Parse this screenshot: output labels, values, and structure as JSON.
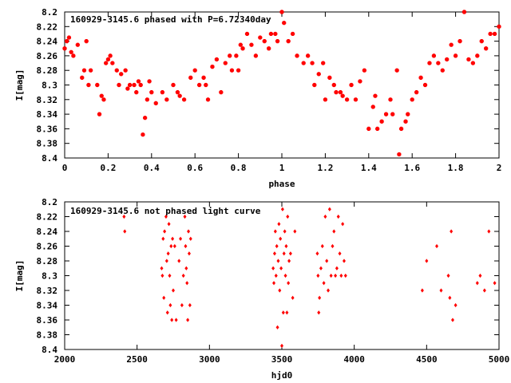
{
  "chart_data": [
    {
      "type": "scatter",
      "title": "160929-3145.6 phased with P=6.72340day",
      "xlabel": "phase",
      "ylabel": "I[mag]",
      "xlim": [
        0,
        2
      ],
      "ylim": [
        8.4,
        8.2
      ],
      "y_inverted": true,
      "grid": false,
      "marker_color": "#ff0000",
      "x_ticks": [
        "0",
        "0.2",
        "0.4",
        "0.6",
        "0.8",
        "1",
        "1.2",
        "1.4",
        "1.6",
        "1.8",
        "2"
      ],
      "y_ticks": [
        "8.2",
        "8.22",
        "8.24",
        "8.26",
        "8.28",
        "8.3",
        "8.32",
        "8.34",
        "8.36",
        "8.38",
        "8.4"
      ],
      "x": [
        0.0,
        0.01,
        0.02,
        0.03,
        0.04,
        0.06,
        0.08,
        0.09,
        0.1,
        0.11,
        0.12,
        0.15,
        0.16,
        0.17,
        0.18,
        0.19,
        0.2,
        0.21,
        0.22,
        0.24,
        0.25,
        0.26,
        0.28,
        0.29,
        0.3,
        0.32,
        0.33,
        0.34,
        0.35,
        0.36,
        0.37,
        0.38,
        0.39,
        0.4,
        0.42,
        0.45,
        0.47,
        0.5,
        0.52,
        0.53,
        0.55,
        0.58,
        0.6,
        0.62,
        0.64,
        0.65,
        0.66,
        0.68,
        0.7,
        0.72,
        0.74,
        0.76,
        0.77,
        0.79,
        0.8,
        0.81,
        0.82,
        0.84,
        0.86,
        0.88,
        0.9,
        0.92,
        0.94,
        0.95,
        0.97,
        0.98,
        1.0,
        1.01,
        1.03,
        1.05,
        1.07,
        1.1,
        1.12,
        1.14,
        1.15,
        1.17,
        1.19,
        1.2,
        1.22,
        1.24,
        1.25,
        1.27,
        1.28,
        1.3,
        1.32,
        1.34,
        1.36,
        1.38,
        1.4,
        1.42,
        1.43,
        1.44,
        1.46,
        1.48,
        1.5,
        1.51,
        1.53,
        1.54,
        1.55,
        1.57,
        1.58,
        1.6,
        1.62,
        1.64,
        1.66,
        1.68,
        1.7,
        1.72,
        1.74,
        1.76,
        1.78,
        1.8,
        1.82,
        1.84,
        1.86,
        1.88,
        1.9,
        1.92,
        1.94,
        1.96,
        1.98,
        2.0
      ],
      "y": [
        8.25,
        8.24,
        8.235,
        8.255,
        8.26,
        8.245,
        8.29,
        8.28,
        8.24,
        8.3,
        8.28,
        8.3,
        8.34,
        8.315,
        8.32,
        8.27,
        8.265,
        8.26,
        8.27,
        8.28,
        8.3,
        8.285,
        8.28,
        8.305,
        8.3,
        8.3,
        8.31,
        8.295,
        8.3,
        8.368,
        8.345,
        8.32,
        8.295,
        8.31,
        8.325,
        8.31,
        8.32,
        8.3,
        8.31,
        8.315,
        8.32,
        8.29,
        8.28,
        8.3,
        8.29,
        8.3,
        8.32,
        8.275,
        8.265,
        8.31,
        8.27,
        8.26,
        8.28,
        8.26,
        8.28,
        8.245,
        8.25,
        8.23,
        8.245,
        8.26,
        8.235,
        8.24,
        8.25,
        8.23,
        8.23,
        8.24,
        8.2,
        8.215,
        8.24,
        8.23,
        8.26,
        8.27,
        8.26,
        8.27,
        8.3,
        8.285,
        8.27,
        8.32,
        8.29,
        8.3,
        8.31,
        8.31,
        8.315,
        8.32,
        8.3,
        8.32,
        8.295,
        8.28,
        8.36,
        8.33,
        8.315,
        8.36,
        8.35,
        8.34,
        8.32,
        8.34,
        8.28,
        8.395,
        8.36,
        8.35,
        8.34,
        8.32,
        8.31,
        8.29,
        8.3,
        8.27,
        8.26,
        8.27,
        8.28,
        8.265,
        8.245,
        8.26,
        8.24,
        8.2,
        8.265,
        8.27,
        8.26,
        8.24,
        8.25,
        8.23,
        8.23,
        8.22
      ]
    },
    {
      "type": "scatter",
      "title": "160929-3145.6 not phased light curve",
      "xlabel": "hjd0",
      "ylabel": "I[mag]",
      "xlim": [
        2000,
        5000
      ],
      "ylim": [
        8.4,
        8.2
      ],
      "y_inverted": true,
      "grid": false,
      "marker_color": "#ff0000",
      "x_ticks": [
        "2000",
        "2500",
        "3000",
        "3500",
        "4000",
        "4500",
        "5000"
      ],
      "y_ticks": [
        "8.2",
        "8.22",
        "8.24",
        "8.26",
        "8.28",
        "8.3",
        "8.32",
        "8.34",
        "8.36",
        "8.38",
        "8.4"
      ],
      "x": [
        2410,
        2415,
        2670,
        2675,
        2680,
        2685,
        2690,
        2700,
        2705,
        2710,
        2715,
        2720,
        2725,
        2730,
        2735,
        2740,
        2745,
        2750,
        2760,
        2770,
        2790,
        2800,
        2810,
        2820,
        2830,
        2835,
        2840,
        2845,
        2850,
        2855,
        2860,
        2865,
        2870,
        3440,
        3445,
        3450,
        3455,
        3460,
        3465,
        3470,
        3475,
        3480,
        3485,
        3490,
        3495,
        3500,
        3505,
        3510,
        3515,
        3520,
        3525,
        3530,
        3535,
        3540,
        3545,
        3550,
        3560,
        3575,
        3590,
        3745,
        3750,
        3755,
        3760,
        3770,
        3780,
        3790,
        3800,
        3810,
        3820,
        3830,
        3840,
        3850,
        3860,
        3870,
        3880,
        3890,
        3900,
        3910,
        3920,
        3930,
        3940,
        4470,
        4500,
        4570,
        4600,
        4650,
        4660,
        4670,
        4680,
        4700,
        4850,
        4870,
        4900,
        4930,
        4970
      ],
      "y": [
        8.22,
        8.24,
        8.29,
        8.3,
        8.25,
        8.33,
        8.24,
        8.22,
        8.28,
        8.35,
        8.27,
        8.23,
        8.3,
        8.34,
        8.26,
        8.36,
        8.25,
        8.32,
        8.26,
        8.36,
        8.28,
        8.25,
        8.34,
        8.3,
        8.22,
        8.26,
        8.29,
        8.31,
        8.36,
        8.24,
        8.27,
        8.34,
        8.25,
        8.29,
        8.31,
        8.27,
        8.24,
        8.3,
        8.26,
        8.37,
        8.28,
        8.23,
        8.32,
        8.25,
        8.29,
        8.395,
        8.21,
        8.35,
        8.27,
        8.24,
        8.3,
        8.26,
        8.35,
        8.22,
        8.31,
        8.28,
        8.27,
        8.33,
        8.24,
        8.27,
        8.3,
        8.35,
        8.33,
        8.29,
        8.26,
        8.31,
        8.22,
        8.28,
        8.32,
        8.21,
        8.3,
        8.26,
        8.24,
        8.3,
        8.29,
        8.22,
        8.27,
        8.3,
        8.23,
        8.28,
        8.3,
        8.32,
        8.28,
        8.26,
        8.32,
        8.3,
        8.33,
        8.24,
        8.36,
        8.34,
        8.31,
        8.3,
        8.32,
        8.24,
        8.31
      ]
    }
  ]
}
